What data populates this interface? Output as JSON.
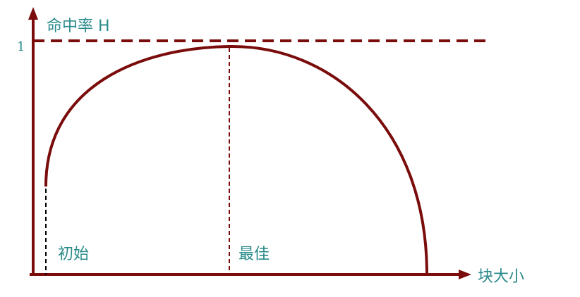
{
  "labels": {
    "y_axis": "命中率 H",
    "y_tick_one": "1",
    "x_axis": "块大小",
    "initial": "初始",
    "optimal": "最佳"
  },
  "colors": {
    "curve": "#7a0c0c",
    "axis": "#7a0c0c",
    "text": "#2a8a8a",
    "initial_guide": "#000000"
  }
}
